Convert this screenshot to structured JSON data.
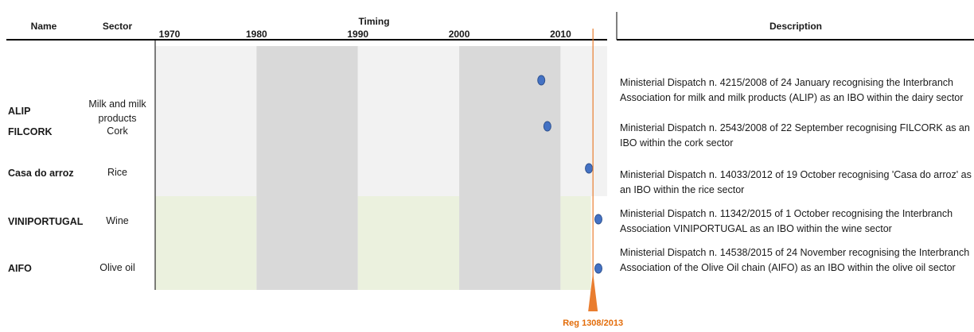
{
  "headers": {
    "name": "Name",
    "sector": "Sector",
    "timing": "Timing",
    "description": "Description"
  },
  "chart_data": {
    "type": "scatter",
    "x_ticks": [
      "1970",
      "1980",
      "1990",
      "2000",
      "2010"
    ],
    "xlim": [
      1970,
      2014.6
    ],
    "period_bands": [
      1970,
      1980,
      1990,
      2000,
      2010
    ],
    "rows": [
      {
        "name": "ALIP",
        "sector": "Milk and milk products",
        "year": 2008.1,
        "description": "Ministerial Dispatch n. 4215/2008 of 24 January recognising the Interbranch Association for milk and milk products (ALIP) as an IBO within the dairy sector"
      },
      {
        "name": "FILCORK",
        "sector": "Cork",
        "year": 2008.7,
        "description": "Ministerial Dispatch n. 2543/2008 of 22 September recognising FILCORK as an IBO within the cork sector"
      },
      {
        "name": "Casa do arroz",
        "sector": "Rice",
        "year": 2012.8,
        "description": "Ministerial Dispatch n. 14033/2012 of 19 October recognising  'Casa do arroz' as an IBO within the rice sector"
      },
      {
        "name": "VINIPORTUGAL",
        "sector": "Wine",
        "year": 2015.75,
        "description": "Ministerial Dispatch n. 11342/2015 of 1 October recognising the Interbranch Association VINIPORTUGAL as an IBO within the wine sector"
      },
      {
        "name": "AIFO",
        "sector": "Olive oil",
        "year": 2015.9,
        "description": "Ministerial Dispatch n. 14538/2015 of 24 November recognising the Interbranch Association of the Olive Oil chain (AIFO) as an IBO within the olive oil sector"
      }
    ],
    "marker": {
      "label": "Reg 1308/2013",
      "year": 2013.2
    },
    "colors": {
      "band_light_top": "#f2f2f2",
      "band_dark_top": "#d9d9d9",
      "band_light_bottom": "#ebf1de",
      "band_dark_bottom": "#d9d9d9",
      "dot": "#4472c4",
      "marker": "#e97d2f",
      "marker_text": "#e36c09"
    }
  }
}
